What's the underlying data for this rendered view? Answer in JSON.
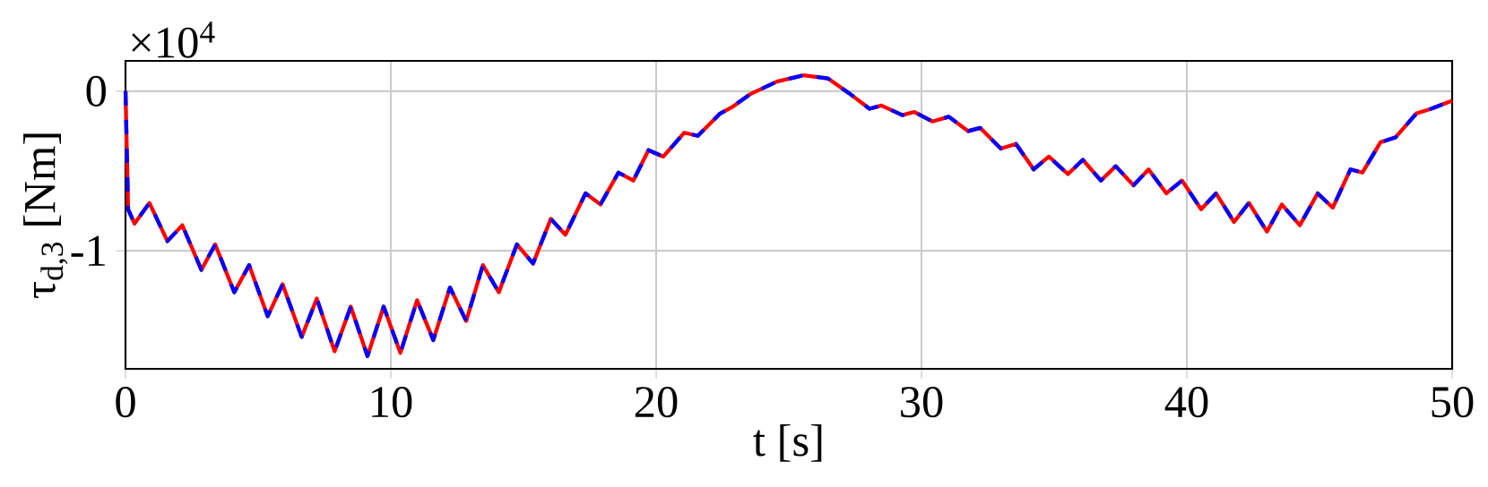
{
  "chart_data": {
    "type": "line",
    "xlabel": "t [s]",
    "ylabel": "τ$_{d,3}$ [Nm]",
    "annotations": [
      "×10$^{4}$"
    ],
    "xlim": [
      0,
      50
    ],
    "ylim": [
      -1.74,
      0.19
    ],
    "xticks": [
      0,
      10,
      20,
      30,
      40,
      50
    ],
    "yticks": [
      -1,
      0
    ],
    "grid": true,
    "x": [
      0,
      0.1,
      0.34,
      0.9,
      1.58,
      2.14,
      2.86,
      3.38,
      4.1,
      4.66,
      5.36,
      5.92,
      6.64,
      7.21,
      7.88,
      8.49,
      9.12,
      9.73,
      10.36,
      10.99,
      11.6,
      12.23,
      12.84,
      13.47,
      14.07,
      14.75,
      15.36,
      16.03,
      16.58,
      17.34,
      17.9,
      18.58,
      19.14,
      19.71,
      20.27,
      21.06,
      21.57,
      22.41,
      22.86,
      23.53,
      24.55,
      25.56,
      26.47,
      27.25,
      28.04,
      28.49,
      29.28,
      29.73,
      30.41,
      31.03,
      31.76,
      32.21,
      32.99,
      33.56,
      34.23,
      34.8,
      35.52,
      36.08,
      36.76,
      37.32,
      37.99,
      38.56,
      39.23,
      39.82,
      40.54,
      41.1,
      41.78,
      42.34,
      43.02,
      43.58,
      44.26,
      44.93,
      45.5,
      46.17,
      46.62,
      47.3,
      47.86,
      48.65,
      49.21,
      50
    ],
    "series": [
      {
        "color": "#ff0000",
        "line_style": "solid",
        "values": [
          0,
          -0.74,
          -0.83,
          -0.7,
          -0.94,
          -0.84,
          -1.12,
          -0.96,
          -1.26,
          -1.09,
          -1.41,
          -1.21,
          -1.54,
          -1.3,
          -1.63,
          -1.35,
          -1.66,
          -1.35,
          -1.64,
          -1.31,
          -1.56,
          -1.23,
          -1.44,
          -1.09,
          -1.26,
          -0.96,
          -1.08,
          -0.8,
          -0.9,
          -0.64,
          -0.71,
          -0.51,
          -0.56,
          -0.37,
          -0.41,
          -0.26,
          -0.28,
          -0.14,
          -0.1,
          -0.02,
          0.06,
          0.1,
          0.08,
          -0.01,
          -0.11,
          -0.09,
          -0.15,
          -0.13,
          -0.19,
          -0.16,
          -0.25,
          -0.23,
          -0.36,
          -0.33,
          -0.49,
          -0.41,
          -0.52,
          -0.43,
          -0.56,
          -0.47,
          -0.59,
          -0.49,
          -0.64,
          -0.56,
          -0.74,
          -0.64,
          -0.82,
          -0.7,
          -0.88,
          -0.71,
          -0.84,
          -0.64,
          -0.73,
          -0.49,
          -0.51,
          -0.32,
          -0.29,
          -0.14,
          -0.11,
          -0.06
        ]
      },
      {
        "color": "#0000ff",
        "line_style": "dashed",
        "values": [
          0,
          -0.74,
          -0.83,
          -0.7,
          -0.94,
          -0.84,
          -1.12,
          -0.96,
          -1.26,
          -1.09,
          -1.41,
          -1.21,
          -1.54,
          -1.3,
          -1.63,
          -1.35,
          -1.66,
          -1.35,
          -1.64,
          -1.31,
          -1.56,
          -1.23,
          -1.44,
          -1.09,
          -1.26,
          -0.96,
          -1.08,
          -0.8,
          -0.9,
          -0.64,
          -0.71,
          -0.51,
          -0.56,
          -0.37,
          -0.41,
          -0.26,
          -0.28,
          -0.14,
          -0.1,
          -0.02,
          0.06,
          0.1,
          0.08,
          -0.01,
          -0.11,
          -0.09,
          -0.15,
          -0.13,
          -0.19,
          -0.16,
          -0.25,
          -0.23,
          -0.36,
          -0.33,
          -0.49,
          -0.41,
          -0.52,
          -0.43,
          -0.56,
          -0.47,
          -0.59,
          -0.49,
          -0.64,
          -0.56,
          -0.74,
          -0.64,
          -0.82,
          -0.7,
          -0.88,
          -0.71,
          -0.84,
          -0.64,
          -0.73,
          -0.49,
          -0.51,
          -0.32,
          -0.29,
          -0.14,
          -0.11,
          -0.06
        ]
      }
    ]
  }
}
